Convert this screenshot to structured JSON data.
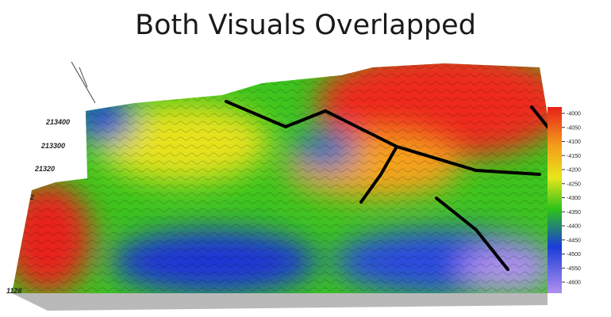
{
  "title": "Both Visuals Overlapped",
  "axis_labels": [
    "213400",
    "213300",
    "21320",
    "2",
    "1128"
  ],
  "colorbar": {
    "ticks": [
      -4000,
      -4050,
      -4100,
      -4150,
      -4200,
      -4250,
      -4300,
      -4350,
      -4400,
      -4450,
      -4500,
      -4550,
      -4600
    ]
  }
}
